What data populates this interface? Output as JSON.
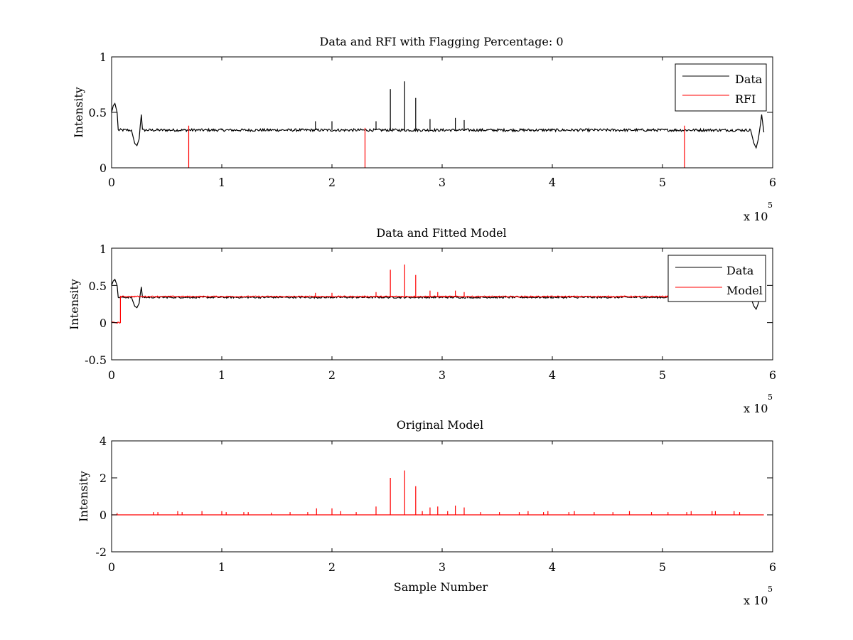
{
  "chart_data": [
    {
      "type": "line",
      "title": "Data and RFI with Flagging Percentage: 0",
      "xlabel": "",
      "ylabel": "Intensity",
      "xlim": [
        0,
        600000
      ],
      "ylim": [
        0,
        1
      ],
      "xticks": [
        0,
        1,
        2,
        3,
        4,
        5,
        6
      ],
      "yticks": [
        0,
        0.5,
        1
      ],
      "xtick_labels": [
        "0",
        "1",
        "2",
        "3",
        "4",
        "5",
        "6"
      ],
      "ytick_labels": [
        "0",
        "0.5",
        "1"
      ],
      "x_multiplier": "x 10",
      "x_multiplier_exp": "5",
      "legend": {
        "position": "top-right",
        "entries": [
          "Data",
          "RFI"
        ]
      },
      "series": [
        {
          "name": "Data",
          "color": "#000000",
          "baseline": 0.34,
          "noise": 0.012,
          "path": [
            [
              0,
              0.5
            ],
            [
              1500,
              0.56
            ],
            [
              3000,
              0.58
            ],
            [
              5000,
              0.5
            ],
            [
              6000,
              0.34
            ],
            [
              18000,
              0.34
            ],
            [
              21000,
              0.22
            ],
            [
              23000,
              0.2
            ],
            [
              25000,
              0.26
            ],
            [
              26000,
              0.38
            ],
            [
              27000,
              0.48
            ],
            [
              28000,
              0.34
            ],
            [
              580000,
              0.34
            ],
            [
              583000,
              0.22
            ],
            [
              585000,
              0.18
            ],
            [
              587000,
              0.26
            ],
            [
              589000,
              0.4
            ],
            [
              590000,
              0.48
            ],
            [
              592000,
              0.32
            ]
          ],
          "spikes": [
            [
              185000,
              0.42
            ],
            [
              200000,
              0.42
            ],
            [
              240000,
              0.42
            ],
            [
              253000,
              0.71
            ],
            [
              266000,
              0.78
            ],
            [
              276000,
              0.63
            ],
            [
              289000,
              0.44
            ],
            [
              312000,
              0.45
            ],
            [
              320000,
              0.43
            ]
          ]
        },
        {
          "name": "RFI",
          "color": "#ff0000",
          "spikes": [
            [
              70000,
              0.38
            ],
            [
              230000,
              0.36
            ],
            [
              520000,
              0.38
            ]
          ]
        }
      ]
    },
    {
      "type": "line",
      "title": "Data and Fitted Model",
      "xlabel": "",
      "ylabel": "Intensity",
      "xlim": [
        0,
        600000
      ],
      "ylim": [
        -0.5,
        1
      ],
      "xticks": [
        0,
        1,
        2,
        3,
        4,
        5,
        6
      ],
      "yticks": [
        -0.5,
        0,
        0.5,
        1
      ],
      "xtick_labels": [
        "0",
        "1",
        "2",
        "3",
        "4",
        "5",
        "6"
      ],
      "ytick_labels": [
        "-0.5",
        "0",
        "0.5",
        "1"
      ],
      "x_multiplier": "x 10",
      "x_multiplier_exp": "5",
      "legend": {
        "position": "top-right",
        "entries": [
          "Data",
          "Model"
        ]
      },
      "series": [
        {
          "name": "Data",
          "color": "#000000",
          "baseline": 0.34,
          "noise": 0.012,
          "path": [
            [
              0,
              0.5
            ],
            [
              1500,
              0.56
            ],
            [
              3000,
              0.58
            ],
            [
              5000,
              0.5
            ],
            [
              6000,
              0.34
            ],
            [
              18000,
              0.34
            ],
            [
              21000,
              0.22
            ],
            [
              23000,
              0.2
            ],
            [
              25000,
              0.26
            ],
            [
              26000,
              0.38
            ],
            [
              27000,
              0.48
            ],
            [
              28000,
              0.34
            ],
            [
              580000,
              0.34
            ],
            [
              583000,
              0.22
            ],
            [
              585000,
              0.18
            ],
            [
              587000,
              0.26
            ],
            [
              589000,
              0.4
            ],
            [
              590000,
              0.48
            ],
            [
              592000,
              0.32
            ]
          ],
          "spikes": []
        },
        {
          "name": "Model",
          "color": "#ff0000",
          "baseline": 0.35,
          "noise": 0.008,
          "path": [
            [
              0,
              0
            ],
            [
              8000,
              0
            ],
            [
              8000,
              0.35
            ],
            [
              592000,
              0.35
            ]
          ],
          "spikes": [
            [
              185000,
              0.4
            ],
            [
              200000,
              0.4
            ],
            [
              240000,
              0.41
            ],
            [
              253000,
              0.71
            ],
            [
              266000,
              0.78
            ],
            [
              276000,
              0.64
            ],
            [
              289000,
              0.43
            ],
            [
              296000,
              0.41
            ],
            [
              312000,
              0.43
            ],
            [
              320000,
              0.41
            ]
          ]
        }
      ]
    },
    {
      "type": "line",
      "title": "Original Model",
      "xlabel": "Sample Number",
      "ylabel": "Intensity",
      "xlim": [
        0,
        600000
      ],
      "ylim": [
        -2,
        4
      ],
      "xticks": [
        0,
        1,
        2,
        3,
        4,
        5,
        6
      ],
      "yticks": [
        -2,
        0,
        2,
        4
      ],
      "xtick_labels": [
        "0",
        "1",
        "2",
        "3",
        "4",
        "5",
        "6"
      ],
      "ytick_labels": [
        "-2",
        "0",
        "2",
        "4"
      ],
      "x_multiplier": "x 10",
      "x_multiplier_exp": "5",
      "series": [
        {
          "name": "",
          "color": "#ff0000",
          "baseline": 0,
          "noise": 0,
          "path": [
            [
              0,
              0
            ],
            [
              592000,
              0
            ]
          ],
          "spikes": [
            [
              5000,
              0.1
            ],
            [
              38000,
              0.15
            ],
            [
              42000,
              0.15
            ],
            [
              60000,
              0.2
            ],
            [
              64000,
              0.15
            ],
            [
              82000,
              0.2
            ],
            [
              100000,
              0.2
            ],
            [
              104000,
              0.15
            ],
            [
              120000,
              0.15
            ],
            [
              124000,
              0.15
            ],
            [
              145000,
              0.12
            ],
            [
              162000,
              0.15
            ],
            [
              178000,
              0.15
            ],
            [
              186000,
              0.35
            ],
            [
              200000,
              0.35
            ],
            [
              208000,
              0.2
            ],
            [
              222000,
              0.15
            ],
            [
              240000,
              0.45
            ],
            [
              253000,
              2.0
            ],
            [
              266000,
              2.4
            ],
            [
              276000,
              1.55
            ],
            [
              282000,
              0.2
            ],
            [
              289000,
              0.4
            ],
            [
              296000,
              0.45
            ],
            [
              305000,
              0.2
            ],
            [
              312000,
              0.5
            ],
            [
              320000,
              0.4
            ],
            [
              335000,
              0.15
            ],
            [
              352000,
              0.15
            ],
            [
              370000,
              0.15
            ],
            [
              378000,
              0.2
            ],
            [
              392000,
              0.15
            ],
            [
              396000,
              0.2
            ],
            [
              415000,
              0.15
            ],
            [
              420000,
              0.2
            ],
            [
              438000,
              0.15
            ],
            [
              455000,
              0.15
            ],
            [
              470000,
              0.2
            ],
            [
              490000,
              0.15
            ],
            [
              505000,
              0.15
            ],
            [
              522000,
              0.15
            ],
            [
              526000,
              0.2
            ],
            [
              545000,
              0.2
            ],
            [
              548000,
              0.2
            ],
            [
              565000,
              0.2
            ],
            [
              570000,
              0.15
            ]
          ]
        }
      ]
    }
  ]
}
